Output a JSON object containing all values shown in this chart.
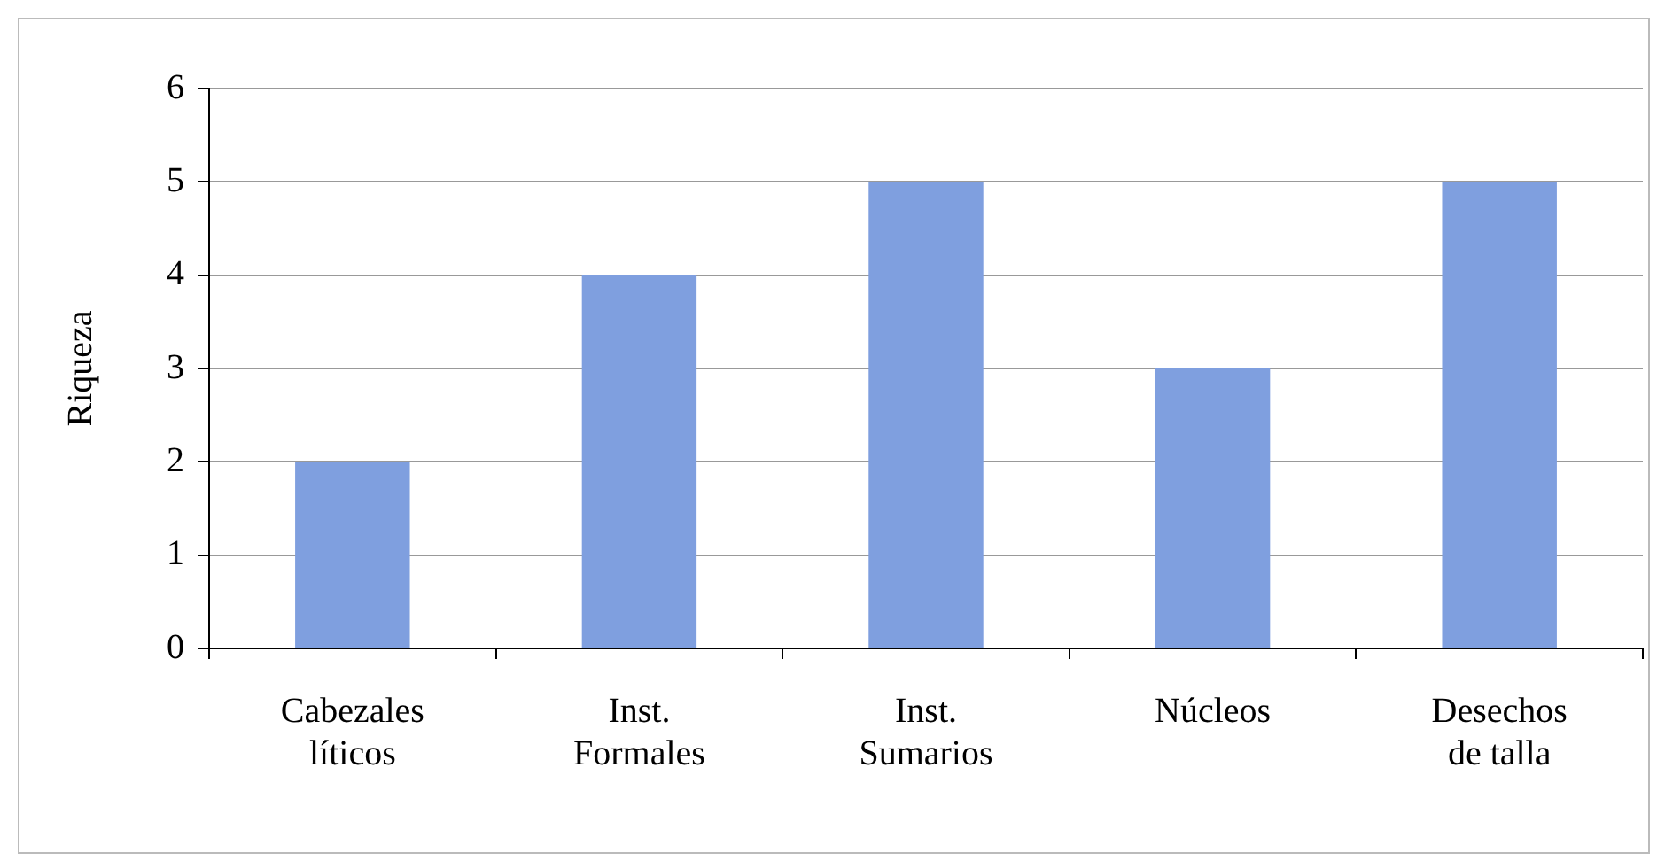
{
  "chart_data": {
    "type": "bar",
    "ylabel": "Riqueza",
    "categories": [
      "Cabezales líticos",
      "Inst. Formales",
      "Inst. Sumarios",
      "Núcleos",
      "Desechos de talla"
    ],
    "values": [
      2,
      4,
      5,
      3,
      5
    ],
    "color": "#7f9fdf",
    "ylim": [
      0,
      6
    ],
    "yticks": [
      0,
      1,
      2,
      3,
      4,
      5,
      6
    ],
    "grid": "y",
    "legend": false
  }
}
